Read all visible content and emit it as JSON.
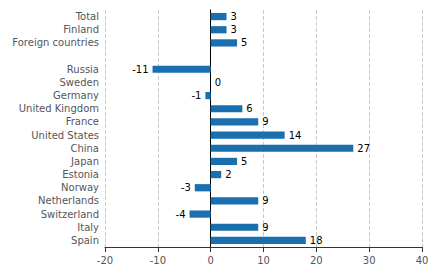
{
  "chart_data": {
    "type": "bar",
    "orientation": "horizontal",
    "categories": [
      "Total",
      "Finland",
      "Foreign countries",
      null,
      "Russia",
      "Sweden",
      "Germany",
      "United Kingdom",
      "France",
      "United States",
      "China",
      "Japan",
      "Estonia",
      "Norway",
      "Netherlands",
      "Switzerland",
      "Italy",
      "Spain"
    ],
    "values": [
      3,
      3,
      5,
      null,
      -11,
      0,
      -1,
      6,
      9,
      14,
      27,
      5,
      2,
      -3,
      9,
      -4,
      9,
      18
    ],
    "color": "#1a6faf",
    "xlim": [
      -20,
      40
    ],
    "xticks": [
      -20,
      -10,
      0,
      10,
      20,
      30,
      40
    ],
    "grid": true,
    "data_labels": true
  }
}
